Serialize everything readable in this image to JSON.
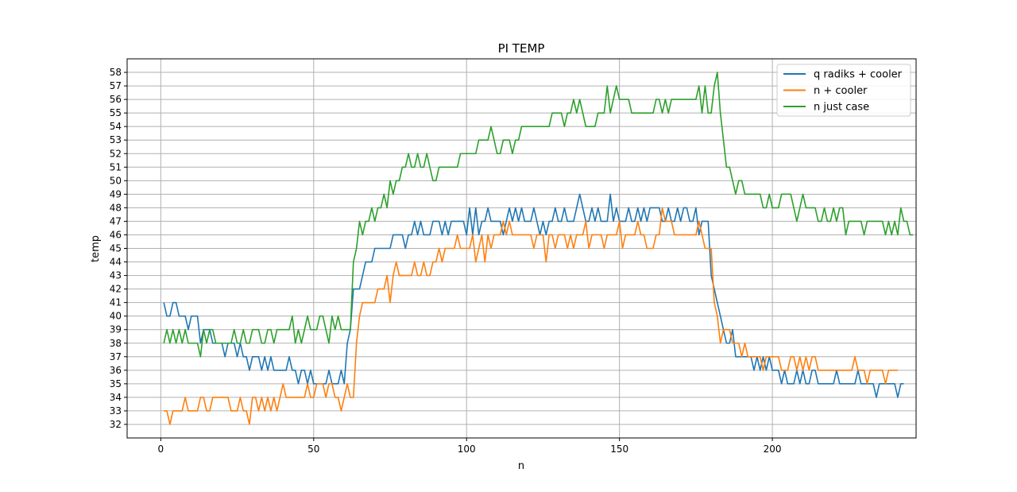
{
  "chart_data": {
    "type": "line",
    "title": "PI TEMP",
    "xlabel": "n",
    "ylabel": "temp",
    "xlim": [
      -11,
      247
    ],
    "ylim": [
      31,
      59
    ],
    "xticks": [
      0,
      50,
      100,
      150,
      200
    ],
    "yticks": [
      32,
      33,
      34,
      35,
      36,
      37,
      38,
      39,
      40,
      41,
      42,
      43,
      44,
      45,
      46,
      47,
      48,
      49,
      50,
      51,
      52,
      53,
      54,
      55,
      56,
      57,
      58
    ],
    "grid": true,
    "legend_position": "top-right",
    "series": [
      {
        "name": "q radiks + cooler",
        "color": "#1f77b4",
        "x_start": 1,
        "values": [
          41,
          40,
          40,
          41,
          41,
          40,
          40,
          40,
          39,
          40,
          40,
          40,
          38,
          39,
          39,
          39,
          38,
          38,
          38,
          38,
          37,
          38,
          38,
          38,
          37,
          38,
          37,
          37,
          36,
          37,
          37,
          37,
          36,
          37,
          36,
          37,
          36,
          36,
          36,
          36,
          36,
          37,
          36,
          36,
          35,
          36,
          36,
          35,
          36,
          35,
          35,
          35,
          35,
          35,
          36,
          35,
          35,
          35,
          36,
          35,
          38,
          39,
          42,
          42,
          42,
          43,
          44,
          44,
          44,
          45,
          45,
          45,
          45,
          45,
          45,
          46,
          46,
          46,
          46,
          45,
          46,
          46,
          47,
          46,
          47,
          46,
          46,
          46,
          47,
          47,
          47,
          46,
          47,
          46,
          47,
          47,
          47,
          47,
          47,
          46,
          48,
          46,
          48,
          46,
          47,
          47,
          48,
          47,
          47,
          47,
          47,
          46,
          47,
          48,
          47,
          48,
          47,
          48,
          47,
          47,
          47,
          48,
          47,
          46,
          47,
          46,
          47,
          47,
          48,
          47,
          47,
          48,
          47,
          47,
          47,
          48,
          49,
          48,
          47,
          47,
          48,
          47,
          48,
          47,
          47,
          47,
          49,
          47,
          48,
          47,
          47,
          47,
          48,
          47,
          47,
          48,
          47,
          48,
          47,
          48,
          48,
          48,
          48,
          47,
          47,
          48,
          47,
          47,
          48,
          47,
          48,
          48,
          47,
          47,
          48,
          46,
          47,
          47,
          47,
          43,
          42,
          41,
          40,
          39,
          38,
          38,
          39,
          37,
          37,
          37,
          37,
          37,
          37,
          36,
          37,
          36,
          37,
          36,
          37,
          36,
          36,
          36,
          35,
          36,
          35,
          35,
          35,
          36,
          35,
          36,
          35,
          35,
          36,
          36,
          35,
          35,
          35,
          35,
          35,
          35,
          36,
          35,
          35,
          35,
          35,
          35,
          35,
          36,
          35,
          35,
          35,
          35,
          35,
          34,
          35,
          35,
          35,
          35,
          35,
          35,
          34,
          35,
          35
        ]
      },
      {
        "name": "n + cooler",
        "color": "#ff7f0e",
        "x_start": 1,
        "values": [
          33,
          33,
          32,
          33,
          33,
          33,
          33,
          34,
          33,
          33,
          33,
          33,
          34,
          34,
          33,
          33,
          34,
          34,
          34,
          34,
          34,
          34,
          33,
          33,
          33,
          34,
          33,
          33,
          32,
          34,
          34,
          33,
          34,
          33,
          34,
          33,
          34,
          33,
          34,
          35,
          34,
          34,
          34,
          34,
          34,
          34,
          34,
          35,
          34,
          34,
          35,
          35,
          35,
          34,
          35,
          35,
          34,
          34,
          33,
          34,
          35,
          34,
          34,
          38,
          40,
          41,
          41,
          41,
          41,
          41,
          42,
          42,
          42,
          43,
          41,
          43,
          44,
          43,
          43,
          43,
          43,
          43,
          44,
          43,
          43,
          44,
          43,
          43,
          44,
          44,
          45,
          44,
          45,
          45,
          45,
          45,
          46,
          45,
          45,
          45,
          45,
          46,
          44,
          45,
          46,
          44,
          46,
          45,
          46,
          46,
          46,
          47,
          46,
          47,
          46,
          46,
          46,
          46,
          46,
          46,
          46,
          45,
          46,
          46,
          46,
          44,
          46,
          46,
          45,
          46,
          46,
          46,
          45,
          46,
          45,
          46,
          46,
          46,
          47,
          45,
          46,
          46,
          46,
          46,
          45,
          46,
          46,
          46,
          46,
          47,
          45,
          46,
          46,
          46,
          46,
          47,
          46,
          46,
          45,
          45,
          45,
          46,
          46,
          48,
          47,
          47,
          47,
          46,
          46,
          46,
          46,
          46,
          46,
          46,
          46,
          47,
          46,
          45,
          45,
          45,
          41,
          40,
          38,
          39,
          39,
          39,
          38,
          38,
          38,
          37,
          38,
          37,
          37,
          37,
          37,
          37,
          36,
          37,
          37,
          37,
          37,
          37,
          36,
          36,
          36,
          37,
          37,
          36,
          37,
          36,
          37,
          36,
          37,
          37,
          36,
          36,
          36,
          36,
          36,
          36,
          36,
          36,
          36,
          36,
          36,
          36,
          37,
          36,
          36,
          36,
          35,
          36,
          36,
          36,
          36,
          36,
          35,
          36,
          36,
          36,
          36
        ]
      },
      {
        "name": "n just case",
        "color": "#2ca02c",
        "x_start": 1,
        "values": [
          38,
          39,
          38,
          39,
          38,
          39,
          38,
          39,
          38,
          38,
          38,
          38,
          37,
          39,
          38,
          39,
          39,
          38,
          38,
          38,
          38,
          38,
          38,
          39,
          38,
          38,
          39,
          38,
          38,
          39,
          39,
          39,
          38,
          38,
          39,
          39,
          38,
          39,
          39,
          39,
          39,
          39,
          40,
          38,
          39,
          38,
          39,
          40,
          39,
          39,
          39,
          40,
          40,
          39,
          38,
          40,
          39,
          40,
          39,
          39,
          39,
          39,
          44,
          45,
          47,
          46,
          47,
          47,
          48,
          47,
          48,
          48,
          49,
          48,
          50,
          49,
          50,
          50,
          51,
          51,
          52,
          51,
          51,
          52,
          51,
          51,
          52,
          51,
          50,
          50,
          51,
          51,
          51,
          51,
          51,
          51,
          51,
          52,
          52,
          52,
          52,
          52,
          52,
          53,
          53,
          53,
          53,
          54,
          53,
          52,
          52,
          53,
          53,
          53,
          52,
          53,
          53,
          54,
          54,
          54,
          54,
          54,
          54,
          54,
          54,
          54,
          54,
          55,
          55,
          55,
          55,
          54,
          55,
          55,
          56,
          55,
          56,
          55,
          54,
          54,
          54,
          54,
          55,
          55,
          55,
          57,
          55,
          56,
          57,
          56,
          56,
          56,
          56,
          55,
          55,
          55,
          55,
          55,
          55,
          55,
          55,
          56,
          56,
          55,
          56,
          55,
          56,
          56,
          56,
          56,
          56,
          56,
          56,
          56,
          56,
          57,
          55,
          57,
          55,
          55,
          57,
          58,
          55,
          53,
          51,
          51,
          50,
          49,
          50,
          50,
          49,
          49,
          49,
          49,
          49,
          49,
          48,
          48,
          49,
          48,
          48,
          48,
          49,
          49,
          49,
          49,
          48,
          47,
          48,
          49,
          48,
          48,
          48,
          48,
          47,
          47,
          48,
          47,
          47,
          48,
          47,
          48,
          48,
          46,
          47,
          47,
          47,
          47,
          47,
          46,
          47,
          47,
          47,
          47,
          47,
          47,
          46,
          47,
          46,
          47,
          46,
          48,
          47,
          47,
          46,
          46
        ]
      }
    ]
  }
}
